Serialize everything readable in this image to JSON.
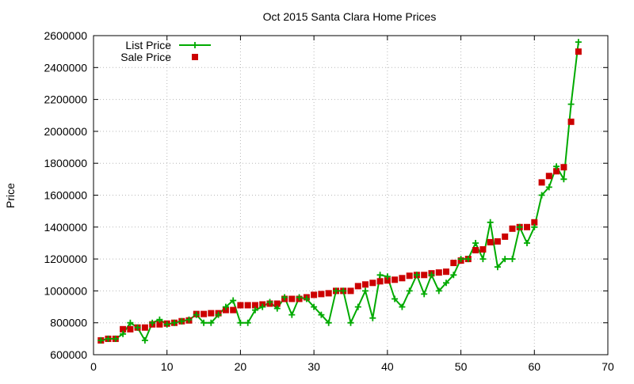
{
  "chart_data": {
    "type": "line",
    "title": "Oct 2015 Santa Clara Home Prices",
    "xlabel": "",
    "ylabel": "Price",
    "xlim": [
      0,
      70
    ],
    "ylim": [
      600000,
      2600000
    ],
    "x_ticks": [
      0,
      10,
      20,
      30,
      40,
      50,
      60,
      70
    ],
    "y_ticks": [
      600000,
      800000,
      1000000,
      1200000,
      1400000,
      1600000,
      1800000,
      2000000,
      2200000,
      2400000,
      2600000
    ],
    "grid": true,
    "legend_position": "top-left",
    "colors": {
      "list": "#00aa00",
      "sale": "#cc0000"
    },
    "series": [
      {
        "name": "List Price",
        "style": "line-plus",
        "x": [
          1,
          2,
          3,
          4,
          5,
          6,
          7,
          8,
          9,
          10,
          11,
          12,
          13,
          14,
          15,
          16,
          17,
          18,
          19,
          20,
          21,
          22,
          23,
          24,
          25,
          26,
          27,
          28,
          29,
          30,
          31,
          32,
          33,
          34,
          35,
          36,
          37,
          38,
          39,
          40,
          41,
          42,
          43,
          44,
          45,
          46,
          47,
          48,
          49,
          50,
          51,
          52,
          53,
          54,
          55,
          56,
          57,
          58,
          59,
          60,
          61,
          62,
          63,
          64,
          65,
          66
        ],
        "y": [
          690000,
          700000,
          700000,
          730000,
          800000,
          770000,
          690000,
          800000,
          820000,
          790000,
          800000,
          810000,
          820000,
          850000,
          800000,
          800000,
          850000,
          900000,
          940000,
          800000,
          800000,
          880000,
          900000,
          930000,
          890000,
          960000,
          850000,
          960000,
          950000,
          900000,
          850000,
          800000,
          1000000,
          1000000,
          800000,
          900000,
          1000000,
          830000,
          1100000,
          1090000,
          950000,
          900000,
          1000000,
          1100000,
          980000,
          1100000,
          1000000,
          1050000,
          1100000,
          1200000,
          1200000,
          1300000,
          1200000,
          1430000,
          1150000,
          1200000,
          1200000,
          1400000,
          1300000,
          1400000,
          1600000,
          1650000,
          1780000,
          1700000,
          2170000,
          2560000
        ]
      },
      {
        "name": "Sale Price",
        "style": "square-points",
        "x": [
          1,
          2,
          3,
          4,
          5,
          6,
          7,
          8,
          9,
          10,
          11,
          12,
          13,
          14,
          15,
          16,
          17,
          18,
          19,
          20,
          21,
          22,
          23,
          24,
          25,
          26,
          27,
          28,
          29,
          30,
          31,
          32,
          33,
          34,
          35,
          36,
          37,
          38,
          39,
          40,
          41,
          42,
          43,
          44,
          45,
          46,
          47,
          48,
          49,
          50,
          51,
          52,
          53,
          54,
          55,
          56,
          57,
          58,
          59,
          60,
          61,
          62,
          63,
          64,
          65,
          66
        ],
        "y": [
          690000,
          700000,
          700000,
          760000,
          760000,
          770000,
          770000,
          790000,
          790000,
          795000,
          800000,
          810000,
          815000,
          855000,
          855000,
          860000,
          860000,
          880000,
          880000,
          910000,
          910000,
          910000,
          915000,
          920000,
          920000,
          950000,
          950000,
          950000,
          960000,
          975000,
          980000,
          985000,
          1000000,
          1000000,
          1000000,
          1030000,
          1040000,
          1050000,
          1060000,
          1065000,
          1070000,
          1080000,
          1095000,
          1100000,
          1100000,
          1110000,
          1115000,
          1120000,
          1175000,
          1190000,
          1200000,
          1255000,
          1260000,
          1305000,
          1310000,
          1340000,
          1390000,
          1400000,
          1400000,
          1430000,
          1680000,
          1720000,
          1750000,
          1775000,
          2060000,
          2500000
        ]
      }
    ]
  }
}
